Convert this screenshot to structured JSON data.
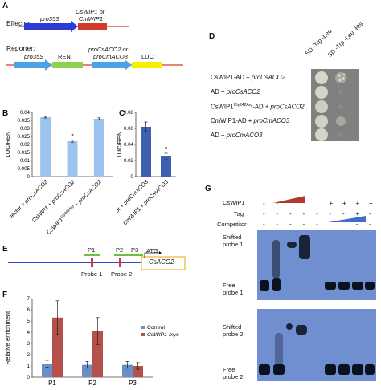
{
  "panels": {
    "A": "A",
    "B": "B",
    "C": "C",
    "D": "D",
    "E": "E",
    "F": "F",
    "G": "G"
  },
  "A": {
    "effector_label": "Effector:",
    "reporter_label": "Reporter:",
    "eff_promoter": "pro35S",
    "eff_gene_l1": "CsWIP1 or",
    "eff_gene_l2": "CmWIP1",
    "rep_promoter": "pro35S",
    "rep_ren": "REN",
    "rep_prom2_l1": "proCsACO2 or",
    "rep_prom2_l2": "proCmACO3",
    "rep_luc": "LUC",
    "colors": {
      "arrow": "#2a3bd6",
      "gene": "#d33a2c",
      "promoter_blue": "#4aa3e8",
      "ren": "#8fd14f",
      "luc": "#f5f000"
    }
  },
  "B": {
    "chart_data": {
      "type": "bar",
      "ylabel": "LUC/REN",
      "ylim": [
        0,
        0.04
      ],
      "yticks": [
        "0",
        "0.005",
        "0.01",
        "0.015",
        "0.02",
        "0.025",
        "0.03",
        "0.035",
        "0.04"
      ],
      "categories": [
        "vector + proCsACO2",
        "CsWIP1 + proCsACO2",
        "CsWIP1Gly242Arg + proCsACO2"
      ],
      "values": [
        0.037,
        0.022,
        0.036
      ],
      "errors": [
        0.0005,
        0.0006,
        0.0006
      ],
      "significance": [
        "",
        "*",
        ""
      ],
      "color": "#9cc3ee"
    },
    "xt": [
      {
        "a": "vector + ",
        "b": "proCsACO2"
      },
      {
        "a": "CsWIP1 + ",
        "b": "proCsACO2"
      },
      {
        "a": "CsWIP1",
        "sup": "Gly242Arg",
        "c": " + ",
        "b": "proCsACO2"
      }
    ]
  },
  "C": {
    "chart_data": {
      "type": "bar",
      "ylabel": "LUC/REN",
      "ylim": [
        0,
        0.08
      ],
      "yticks": [
        "0",
        "0.02",
        "0.04",
        "0.06",
        "0.08"
      ],
      "categories": [
        "vector + proCmACO3",
        "CmWIP1 + proCmACO3"
      ],
      "values": [
        0.062,
        0.025
      ],
      "errors": [
        0.006,
        0.004
      ],
      "significance": [
        "",
        "*"
      ],
      "color": "#3f5fb0"
    },
    "xt": [
      {
        "a": "vector + ",
        "b": "proCmACO3"
      },
      {
        "a": "CmWIP1 + ",
        "b": "proCmACO3"
      }
    ]
  },
  "D": {
    "col1": "SD -Trp -Leu",
    "col2": "SD -Trp -Leu -His",
    "rows": [
      {
        "a": "CsWIP1-AD + ",
        "b": "proCsACO2"
      },
      {
        "a": "AD + ",
        "b": "proCsACO2"
      },
      {
        "a": "CsWIP1",
        "sup": "Gly242Arg",
        "c": "-AD + ",
        "b": "proCsACO2"
      },
      {
        "a": "CmWIP1-AD + ",
        "b": "proCmACO3"
      },
      {
        "a": "AD + ",
        "b": "proCmACO3"
      }
    ]
  },
  "E": {
    "p1": "P1",
    "p2": "P2",
    "p3": "P3",
    "probe1": "Probe 1",
    "probe2": "Probe 2",
    "atg": "ATG",
    "gene": "CsACO2",
    "colors": {
      "line": "#2d4bd2",
      "probe": "#6dbf3f",
      "box": "#f0b429",
      "mark": "#d33a2c"
    }
  },
  "F": {
    "chart_data": {
      "type": "bar",
      "ylabel": "Relative enrichment",
      "ylim": [
        0,
        7
      ],
      "yticks": [
        "0",
        "1",
        "2",
        "3",
        "4",
        "5",
        "6",
        "7"
      ],
      "categories": [
        "P1",
        "P2",
        "P3"
      ],
      "series": [
        {
          "name": "Control",
          "values": [
            1.2,
            1.1,
            1.1
          ],
          "errors": [
            0.3,
            0.3,
            0.3
          ],
          "color": "#6a8fc8"
        },
        {
          "name": "CsWIP1-myc",
          "values": [
            5.3,
            4.1,
            1.0
          ],
          "errors": [
            1.5,
            1.2,
            0.3
          ],
          "color": "#b5514b"
        }
      ],
      "legend": "right"
    }
  },
  "G": {
    "cswip1": "CsWIP1",
    "tag": "Tag",
    "competitor": "Competitor",
    "row_cswip1": [
      "-",
      "-",
      "",
      "",
      "",
      "+",
      "+",
      "+",
      "+"
    ],
    "row_tag": [
      "-",
      "-",
      "-",
      "-",
      "-",
      "-",
      "-",
      "+",
      "-"
    ],
    "row_comp": [
      "-",
      "-",
      "-",
      "-",
      "-",
      "",
      "",
      "-",
      "-"
    ],
    "shifted1_l1": "Shifted",
    "shifted1_l2": "probe 1",
    "free1_l1": "Free",
    "free1_l2": "probe 1",
    "shifted2_l1": "Shifted",
    "shifted2_l2": "probe  2",
    "free2_l1": "Free",
    "free2_l2": "probe 2",
    "colors": {
      "gel": "#6f8fd0",
      "wedge_red": "#b23a2a",
      "wedge_blue": "#3d6fd0"
    }
  }
}
